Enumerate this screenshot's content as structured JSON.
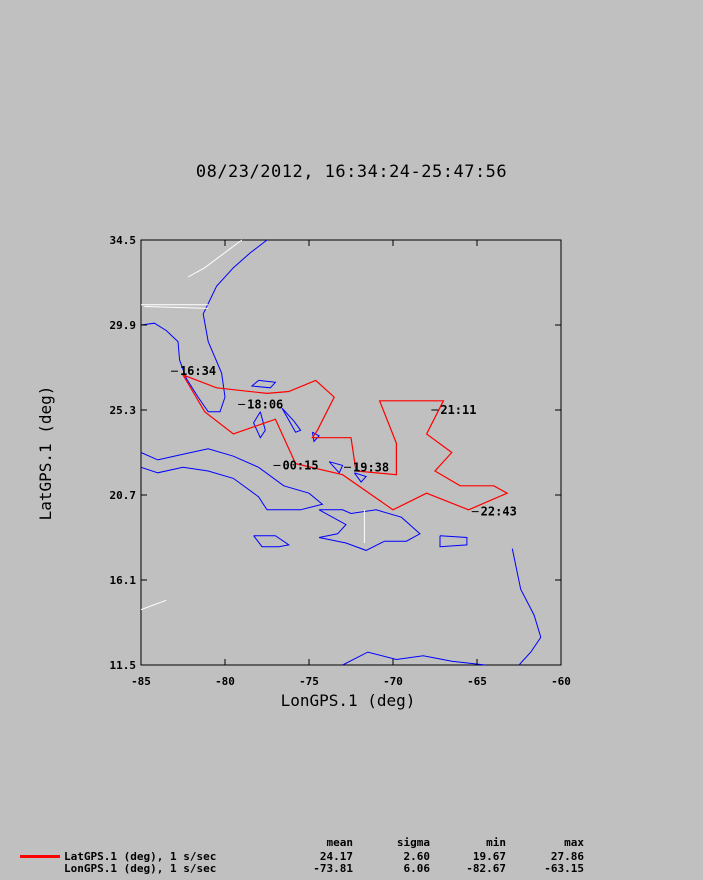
{
  "title": "08/23/2012, 16:34:24-25:47:56",
  "chart_data": {
    "type": "line",
    "xlabel": "LonGPS.1 (deg)",
    "ylabel": "LatGPS.1 (deg)",
    "xlim": [
      -85,
      -60
    ],
    "ylim": [
      11.5,
      34.5
    ],
    "x_ticks": [
      "-85",
      "-80",
      "-75",
      "-70",
      "-65",
      "-60"
    ],
    "y_ticks": [
      "34.5",
      "29.9",
      "25.3",
      "20.7",
      "16.1",
      "11.5"
    ],
    "colors": {
      "track": "#ff0000",
      "coast": "#0000ff",
      "border": "#ffffff",
      "background": "#c0c0c0"
    },
    "track": [
      [
        -82.5,
        27.2
      ],
      [
        -81.2,
        25.2
      ],
      [
        -79.5,
        24.0
      ],
      [
        -77.0,
        24.8
      ],
      [
        -75.8,
        22.4
      ],
      [
        -73.0,
        21.8
      ],
      [
        -70.0,
        19.9
      ],
      [
        -68.0,
        20.8
      ],
      [
        -65.5,
        19.9
      ],
      [
        -63.2,
        20.8
      ],
      [
        -64.0,
        21.2
      ],
      [
        -66.0,
        21.2
      ],
      [
        -67.5,
        22.0
      ],
      [
        -66.5,
        23.0
      ],
      [
        -68.0,
        24.0
      ],
      [
        -67.0,
        25.8
      ],
      [
        -70.8,
        25.8
      ],
      [
        -69.8,
        23.5
      ],
      [
        -69.8,
        21.8
      ],
      [
        -72.2,
        22.0
      ],
      [
        -72.5,
        23.8
      ],
      [
        -74.8,
        23.8
      ],
      [
        -74.5,
        24.2
      ],
      [
        -73.5,
        26.0
      ],
      [
        -74.6,
        26.9
      ],
      [
        -76.2,
        26.3
      ],
      [
        -77.5,
        26.2
      ],
      [
        -80.5,
        26.5
      ],
      [
        -82.5,
        27.2
      ]
    ],
    "time_labels": [
      {
        "text": "16:34",
        "lon": -82.8,
        "lat": 27.4
      },
      {
        "text": "18:06",
        "lon": -78.8,
        "lat": 25.6
      },
      {
        "text": "21:11",
        "lon": -67.3,
        "lat": 25.3
      },
      {
        "text": "00:15",
        "lon": -76.7,
        "lat": 22.3
      },
      {
        "text": "19:38",
        "lon": -72.5,
        "lat": 22.2
      },
      {
        "text": "22:43",
        "lon": -64.9,
        "lat": 19.8
      }
    ]
  },
  "legend": {
    "headers": {
      "mean": "mean",
      "sigma": "sigma",
      "min": "min",
      "max": "max"
    },
    "rows": [
      {
        "label": "LatGPS.1 (deg), 1 s/sec",
        "mean": "24.17",
        "sigma": "2.60",
        "min": "19.67",
        "max": "27.86"
      },
      {
        "label": "LonGPS.1 (deg), 1 s/sec",
        "mean": "-73.81",
        "sigma": "6.06",
        "min": "-82.67",
        "max": "-63.15"
      }
    ]
  }
}
